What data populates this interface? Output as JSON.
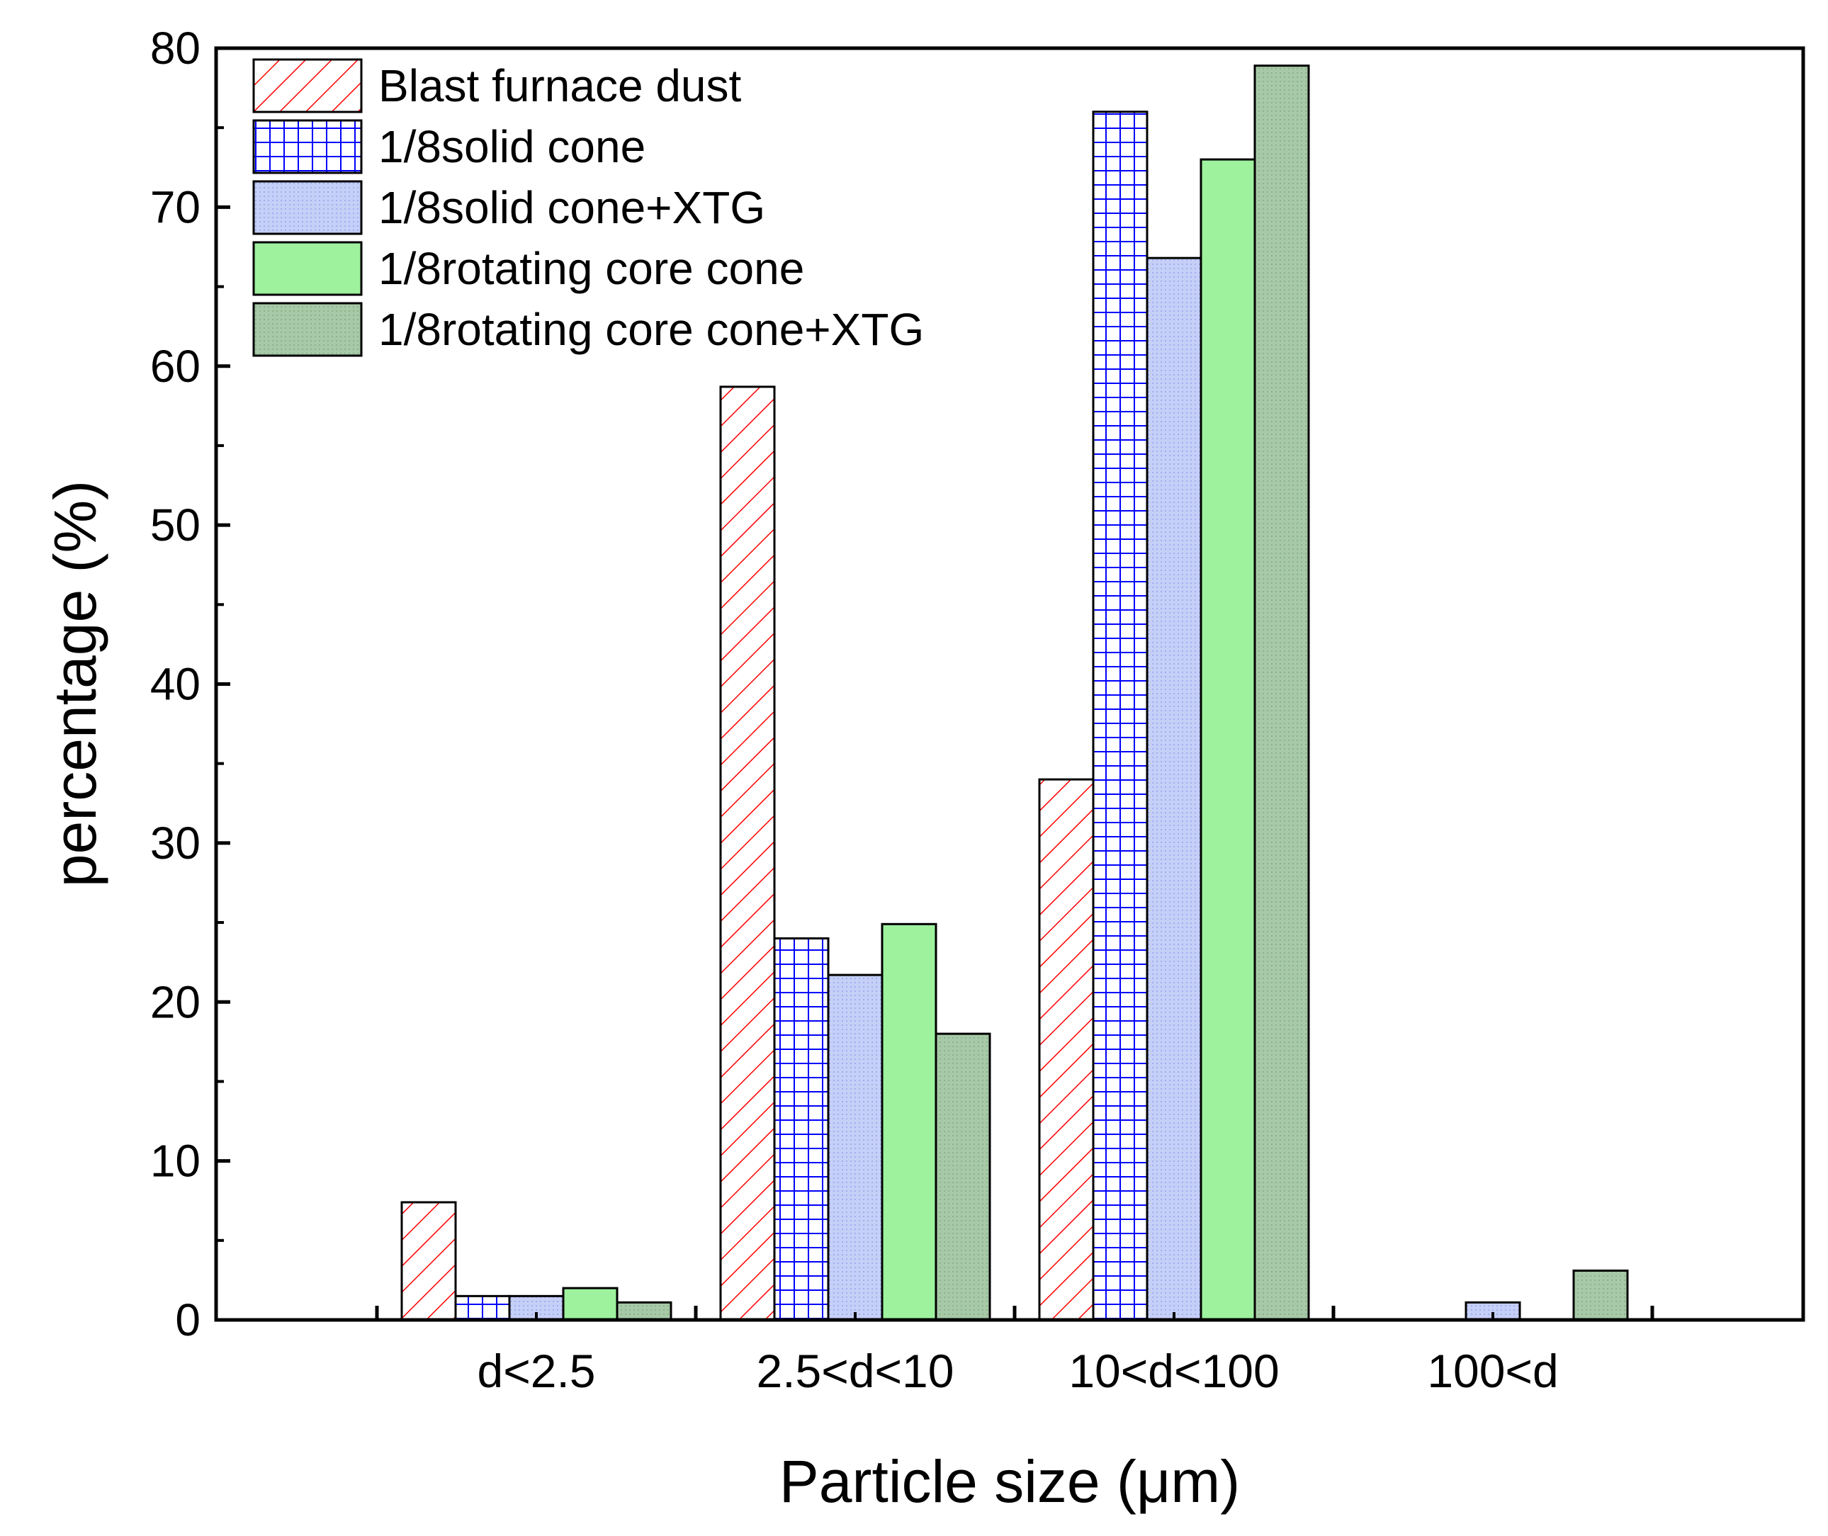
{
  "chart_data": {
    "type": "bar",
    "title": "",
    "xlabel": "Particle size (μm)",
    "ylabel": "percentage (%)",
    "ylim": [
      0,
      80
    ],
    "yticks": [
      "0",
      "10",
      "20",
      "30",
      "40",
      "50",
      "60",
      "70",
      "80"
    ],
    "categories": [
      "d<2.5",
      "2.5<d<10",
      "10<d<100",
      "100<d"
    ],
    "legend_position": "top-left",
    "series": [
      {
        "name": "Blast furnace dust",
        "values": [
          7.4,
          58.7,
          34.0,
          0
        ],
        "color": "#ff0000",
        "pattern": "diagonal-hatch"
      },
      {
        "name": "1/8solid cone",
        "values": [
          1.5,
          24.0,
          76.0,
          0
        ],
        "color": "#0000ff",
        "pattern": "grid-hatch"
      },
      {
        "name": "1/8solid cone+XTG",
        "values": [
          1.5,
          21.7,
          66.8,
          1.1
        ],
        "color": "#b8c4f5",
        "pattern": "fine-dots"
      },
      {
        "name": "1/8rotating core cone",
        "values": [
          2.0,
          24.9,
          73.0,
          0
        ],
        "color": "#9ef29e",
        "pattern": "solid"
      },
      {
        "name": "1/8rotating core cone+XTG",
        "values": [
          1.1,
          18.0,
          78.9,
          3.1
        ],
        "color": "#9fc29f",
        "pattern": "fine-dots"
      }
    ]
  }
}
